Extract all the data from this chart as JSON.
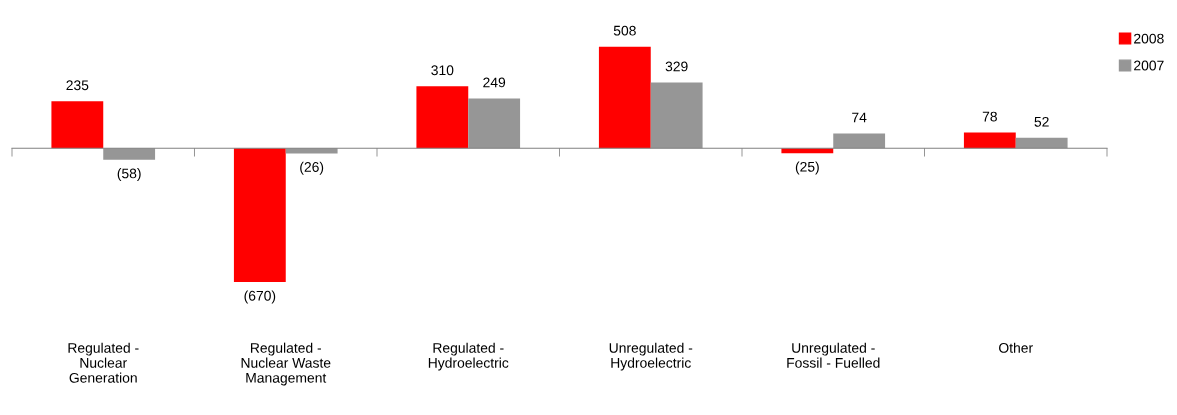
{
  "chart_data": {
    "type": "bar",
    "categories": [
      "Regulated -\nNuclear\nGeneration",
      "Regulated -\nNuclear Waste\nManagement",
      "Regulated -\nHydroelectric",
      "Unregulated -\nHydroelectric",
      "Unregulated -\nFossil - Fuelled",
      "Other"
    ],
    "series": [
      {
        "name": "2008",
        "color": "#ff0000",
        "values": [
          235,
          -670,
          310,
          508,
          -25,
          78
        ],
        "value_labels": [
          "235",
          "(670)",
          "310",
          "508",
          "(25)",
          "78"
        ]
      },
      {
        "name": "2007",
        "color": "#969696",
        "values": [
          -58,
          -26,
          249,
          329,
          74,
          52
        ],
        "value_labels": [
          "(58)",
          "(26)",
          "249",
          "329",
          "74",
          "52"
        ]
      }
    ],
    "tick_labels": "x",
    "legend": "top right",
    "grid": false
  }
}
